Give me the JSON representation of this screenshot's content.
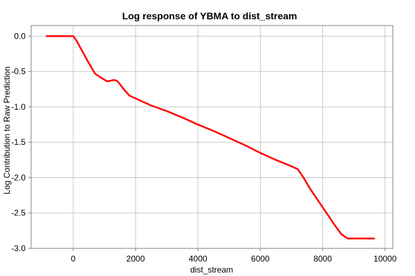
{
  "chart_data": {
    "type": "line",
    "title": "Log response of YBMA to dist_stream",
    "xlabel": "dist_stream",
    "ylabel": "Log Contribution to Raw Prediction",
    "xlim": [
      -1350,
      10250
    ],
    "ylim": [
      -3.0,
      0.15
    ],
    "xticks": [
      0,
      2000,
      4000,
      6000,
      8000,
      10000
    ],
    "xtick_labels": [
      "0",
      "2000",
      "4000",
      "6000",
      "8000",
      "10000"
    ],
    "yticks": [
      0.0,
      -0.5,
      -1.0,
      -1.5,
      -2.0,
      -2.5,
      -3.0
    ],
    "ytick_labels": [
      "0.0",
      "-0.5",
      "-1.0",
      "-1.5",
      "-2.0",
      "-2.5",
      "-3.0"
    ],
    "grid": true,
    "series": [
      {
        "color": "#ff0000",
        "x": [
          -850,
          -100,
          0,
          100,
          300,
          500,
          700,
          900,
          1100,
          1300,
          1400,
          1500,
          1600,
          1800,
          2000,
          2500,
          3000,
          3500,
          4000,
          4500,
          5000,
          5500,
          6000,
          6500,
          7000,
          7200,
          7400,
          7600,
          7800,
          8000,
          8200,
          8400,
          8600,
          8800,
          9000,
          9300,
          9650
        ],
        "y": [
          0.0,
          0.0,
          0.0,
          -0.06,
          -0.22,
          -0.38,
          -0.53,
          -0.59,
          -0.64,
          -0.62,
          -0.63,
          -0.68,
          -0.74,
          -0.84,
          -0.88,
          -0.98,
          -1.06,
          -1.15,
          -1.25,
          -1.34,
          -1.44,
          -1.54,
          -1.65,
          -1.75,
          -1.84,
          -1.88,
          -2.01,
          -2.16,
          -2.29,
          -2.42,
          -2.55,
          -2.68,
          -2.8,
          -2.86,
          -2.86,
          -2.86,
          -2.86
        ]
      }
    ]
  }
}
